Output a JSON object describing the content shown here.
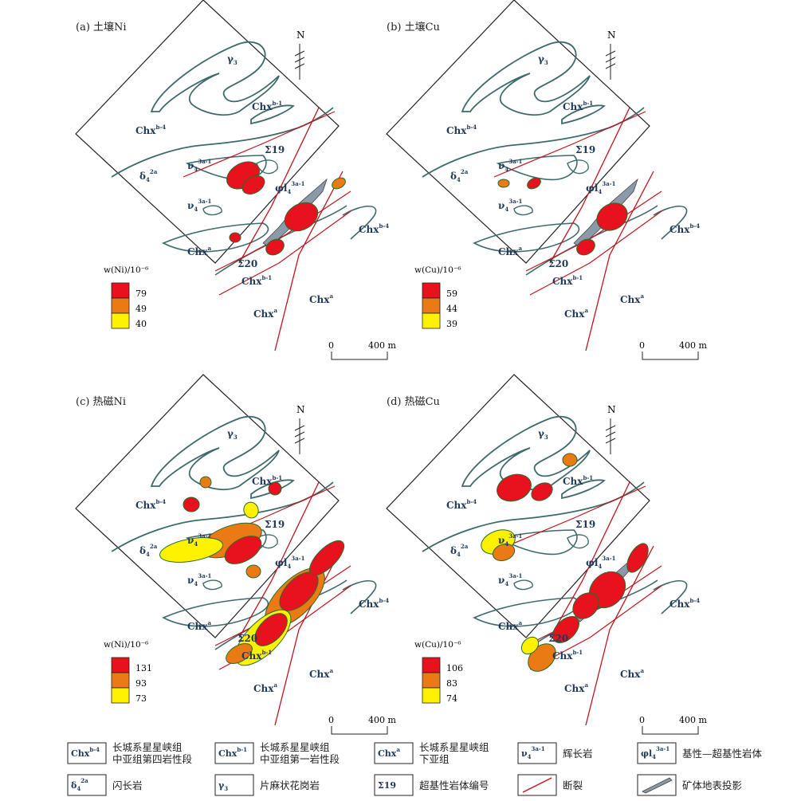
{
  "colors": {
    "high": "#e8111e",
    "mid": "#ea7a14",
    "low": "#fff200",
    "fault": "#c0141d",
    "contour": "#3d6a6a",
    "orebody": "#8a9aa8",
    "geology_text": "#1f3a5a"
  },
  "north_label": "N",
  "panels": [
    {
      "title": "(a) 土壤Ni",
      "legend_title": "w(Ni)/10⁻⁶",
      "legend_values": [
        "79",
        "49",
        "40"
      ],
      "scale_start": "0",
      "scale_end": "400 m"
    },
    {
      "title": "(b) 土壤Cu",
      "legend_title": "w(Cu)/10⁻⁶",
      "legend_values": [
        "59",
        "44",
        "39"
      ],
      "scale_start": "0",
      "scale_end": "400 m"
    },
    {
      "title": "(c) 热磁Ni",
      "legend_title": "w(Ni)/10⁻⁶",
      "legend_values": [
        "131",
        "93",
        "73"
      ],
      "scale_start": "0",
      "scale_end": "400 m"
    },
    {
      "title": "(d) 热磁Cu",
      "legend_title": "w(Cu)/10⁻⁶",
      "legend_values": [
        "106",
        "83",
        "74"
      ],
      "scale_start": "0",
      "scale_end": "400 m"
    }
  ],
  "map_labels": {
    "chx_b4": "Chx",
    "chx_b4_sup": "b-4",
    "chx_b1": "Chx",
    "chx_b1_sup": "b-1",
    "chx_a": "Chx",
    "chx_a_sup": "a",
    "gamma3": "γ",
    "gamma3_sub": "3",
    "sigma19": "Σ19",
    "sigma20": "Σ20",
    "delta": "δ",
    "delta_sub": "4",
    "delta_sup": "2a",
    "nu": "ν",
    "nu_sub": "4",
    "nu_sup": "3a-1",
    "phi": "φl",
    "phi_sub": "4",
    "phi_sup": "3a-1"
  },
  "key": [
    {
      "symbol": "Chx",
      "sup": "b-4",
      "text1": "长城系星星峡组",
      "text2": "中亚组第四岩性段"
    },
    {
      "symbol": "Chx",
      "sup": "b-1",
      "text1": "长城系星星峡组",
      "text2": "中亚组第一岩性段"
    },
    {
      "symbol": "Chx",
      "sup": "a",
      "text1": "长城系星星峡组",
      "text2": "下亚组"
    },
    {
      "symbol": "ν",
      "sup": "3a-1",
      "sub": "4",
      "text1": "辉长岩",
      "text2": ""
    },
    {
      "symbol": "φl",
      "sup": "3a-1",
      "sub": "4",
      "text1": "基性—超基性岩体",
      "text2": ""
    },
    {
      "symbol": "δ",
      "sup": "2a",
      "sub": "4",
      "text1": "闪长岩",
      "text2": ""
    },
    {
      "symbol": "γ",
      "sup": "",
      "sub": "3",
      "text1": "片麻状花岗岩",
      "text2": ""
    },
    {
      "symbol": "Σ19",
      "sup": "",
      "sub": "",
      "text1": "超基性岩体编号",
      "text2": ""
    },
    {
      "symbol": "",
      "sup": "",
      "sub": "",
      "text1": "断裂",
      "text2": ""
    },
    {
      "symbol": "",
      "sup": "",
      "sub": "",
      "text1": "矿体地表投影",
      "text2": ""
    }
  ]
}
